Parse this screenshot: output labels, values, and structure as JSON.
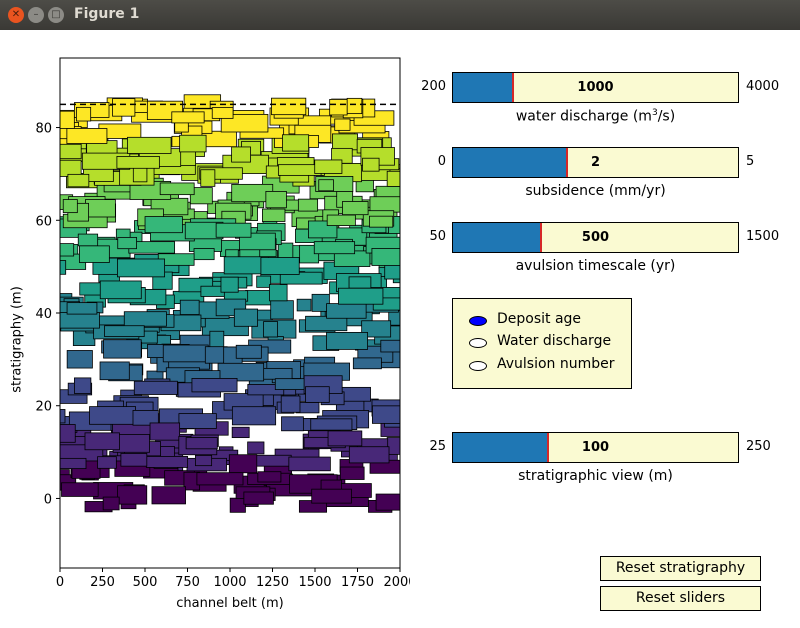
{
  "window": {
    "title": "Figure 1"
  },
  "chart_data": {
    "type": "stratigraphy",
    "xlabel": "channel belt (m)",
    "ylabel": "stratigraphy (m)",
    "xlim": [
      0,
      2000
    ],
    "ylim": [
      -15,
      95
    ],
    "xticks": [
      "0",
      "250",
      "500",
      "750",
      "1000",
      "1250",
      "1500",
      "1750",
      "2000"
    ],
    "yticks": [
      "0",
      "20",
      "40",
      "60",
      "80"
    ],
    "surface_level": 85,
    "colormap": "viridis",
    "colors": [
      "#440154",
      "#482878",
      "#3e4989",
      "#31688e",
      "#26828e",
      "#1f9e89",
      "#35b779",
      "#6ece58",
      "#b5de2b",
      "#fde725"
    ]
  },
  "sliders": [
    {
      "id": "water-discharge",
      "min": "200",
      "max": "4000",
      "value": "1000",
      "label": "water discharge (m³/s)",
      "fraction": 0.21
    },
    {
      "id": "subsidence",
      "min": "0",
      "max": "5",
      "value": "2",
      "label": "subsidence (mm/yr)",
      "fraction": 0.4
    },
    {
      "id": "avulsion-timescale",
      "min": "50",
      "max": "1500",
      "value": "500",
      "label": "avulsion timescale (yr)",
      "fraction": 0.31
    },
    {
      "id": "stratigraphic-view",
      "min": "25",
      "max": "250",
      "value": "100",
      "label": "stratigraphic view (m)",
      "fraction": 0.333
    }
  ],
  "radio": {
    "selected": 0,
    "options": [
      "Deposit age",
      "Water discharge",
      "Avulsion number"
    ]
  },
  "buttons": {
    "reset_strat": "Reset stratigraphy",
    "reset_sliders": "Reset sliders"
  },
  "colors": {
    "slider_fill": "#1f77b4",
    "slider_bg": "#fafad2",
    "marker": "#d62728"
  }
}
